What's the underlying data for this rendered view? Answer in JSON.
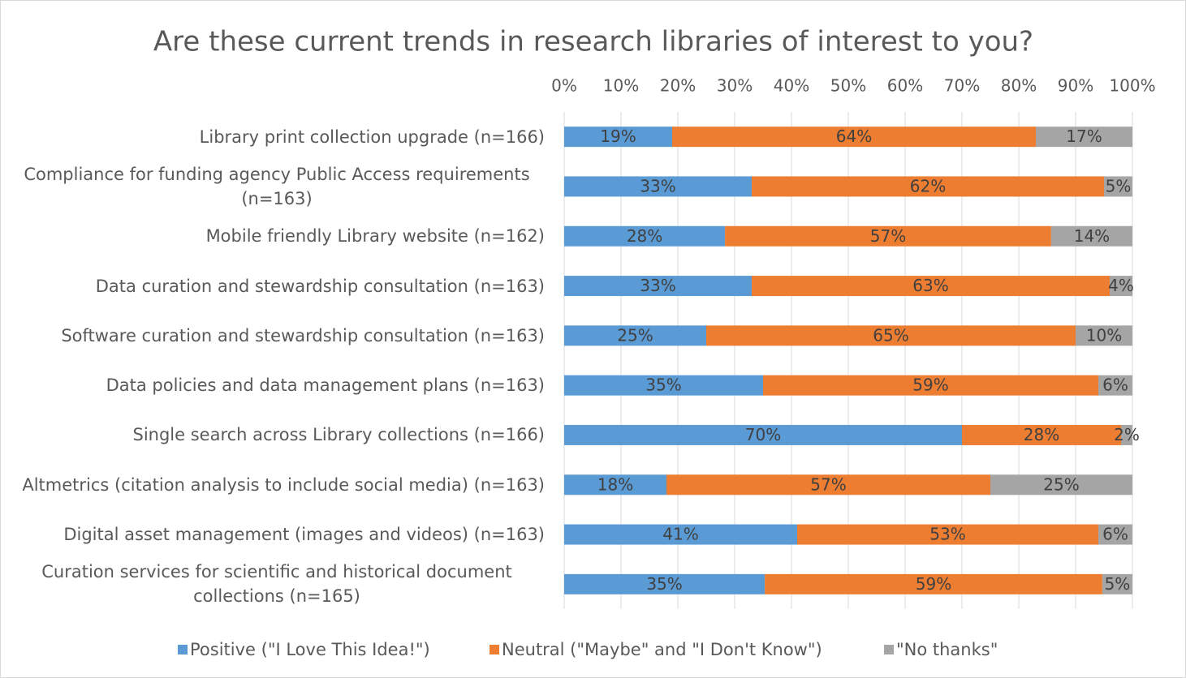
{
  "chart_data": {
    "type": "stacked_bar_horizontal",
    "title": "Are these current trends in research libraries of interest to you?",
    "categories": [
      "Library print collection upgrade (n=166)",
      "Compliance for funding agency Public Access requirements (n=163)",
      "Mobile friendly Library website (n=162)",
      "Data curation and stewardship consultation (n=163)",
      "Software curation and stewardship consultation (n=163)",
      "Data policies and data management plans (n=163)",
      "Single search across Library collections (n=166)",
      "Altmetrics (citation analysis to include social media) (n=163)",
      "Digital asset management (images and videos) (n=163)",
      "Curation services for scientific and historical document collections (n=165)"
    ],
    "series": [
      {
        "name": "Positive (\"I Love This Idea!\")",
        "color": "#5b9bd5",
        "values": [
          19,
          33,
          28.3,
          33,
          25,
          35,
          70,
          18,
          41,
          35.3
        ],
        "value_labels": [
          "19%",
          "33%",
          "28%",
          "33%",
          "25%",
          "35%",
          "70%",
          "18%",
          "41%",
          "35%"
        ]
      },
      {
        "name": "Neutral (\"Maybe\" and \"I Don't Know\")",
        "color": "#ed7d31",
        "values": [
          64,
          62,
          57.4,
          63,
          65,
          59,
          28,
          57,
          53,
          59.4
        ],
        "value_labels": [
          "64%",
          "62%",
          "57%",
          "63%",
          "65%",
          "59%",
          "28%",
          "57%",
          "53%",
          "59%"
        ]
      },
      {
        "name": "\"No thanks\"",
        "color": "#a5a5a5",
        "values": [
          17,
          5,
          14.3,
          4,
          10,
          6,
          2,
          25,
          6,
          5.3
        ],
        "value_labels": [
          "17%",
          "5%",
          "14%",
          "4%",
          "10%",
          "6%",
          "2%",
          "25%",
          "6%",
          "5%"
        ]
      }
    ],
    "xlim": [
      0,
      100
    ],
    "xticks": [
      {
        "value": 0,
        "label": "0%"
      },
      {
        "value": 10,
        "label": "10%"
      },
      {
        "value": 20,
        "label": "20%"
      },
      {
        "value": 30,
        "label": "30%"
      },
      {
        "value": 40,
        "label": "40%"
      },
      {
        "value": 50,
        "label": "50%"
      },
      {
        "value": 60,
        "label": "60%"
      },
      {
        "value": 70,
        "label": "70%"
      },
      {
        "value": 80,
        "label": "80%"
      },
      {
        "value": 90,
        "label": "90%"
      },
      {
        "value": 100,
        "label": "100%"
      }
    ],
    "grid": true,
    "legend": "bottom"
  }
}
